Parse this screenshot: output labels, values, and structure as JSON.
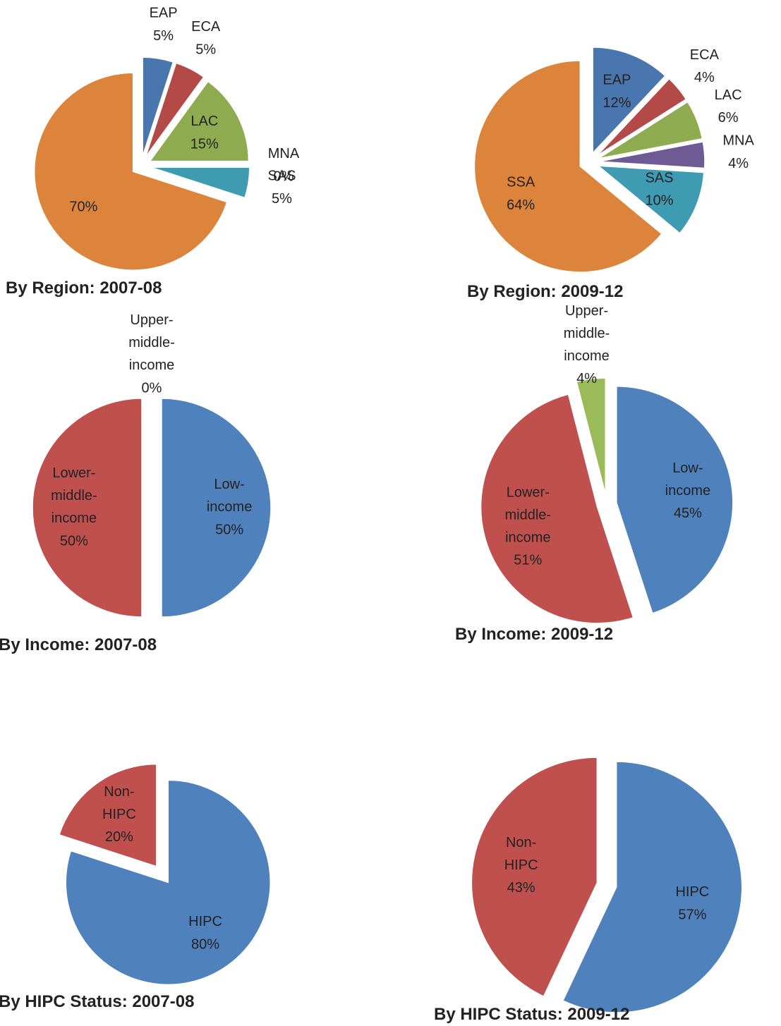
{
  "chart_data": [
    {
      "type": "pie",
      "title": "By Region: 2007-08",
      "categories": [
        "EAP",
        "ECA",
        "LAC",
        "MNA",
        "SAS",
        null
      ],
      "values": [
        5,
        5,
        15,
        0,
        5,
        70
      ],
      "value_labels": [
        "5%",
        "5%",
        "15%",
        "0%",
        "5%",
        "70%"
      ],
      "colors": [
        "#4a76b0",
        "#b44a48",
        "#8eac4f",
        "#6e5a95",
        "#3f9bb2",
        "#dc843c"
      ]
    },
    {
      "type": "pie",
      "title": "By Region: 2009-12",
      "categories": [
        "EAP",
        "ECA",
        "LAC",
        "MNA",
        "SAS",
        "SSA"
      ],
      "values": [
        12,
        4,
        6,
        4,
        10,
        64
      ],
      "value_labels": [
        "12%",
        "4%",
        "6%",
        "4%",
        "10%",
        "64%"
      ],
      "colors": [
        "#4a76b0",
        "#b44a48",
        "#8eac4f",
        "#6e5a95",
        "#3f9bb2",
        "#dc843c"
      ]
    },
    {
      "type": "pie",
      "title": "By Income: 2007-08",
      "categories": [
        "Low-income",
        "Lower-middle-income",
        "Upper-middle-income"
      ],
      "values": [
        50,
        50,
        0
      ],
      "value_labels": [
        "50%",
        "50%",
        "0%"
      ],
      "colors": [
        "#4f81bd",
        "#c0504d",
        "#9bbb59"
      ]
    },
    {
      "type": "pie",
      "title": "By Income: 2009-12",
      "categories": [
        "Low-income",
        "Lower-middle-income",
        "Upper-middle-income"
      ],
      "values": [
        45,
        51,
        4
      ],
      "value_labels": [
        "45%",
        "51%",
        "4%"
      ],
      "colors": [
        "#4f81bd",
        "#c0504d",
        "#9bbb59"
      ]
    },
    {
      "type": "pie",
      "title": "By HIPC Status: 2007-08",
      "categories": [
        "HIPC",
        "Non-HIPC"
      ],
      "values": [
        80,
        20
      ],
      "value_labels": [
        "80%",
        "20%"
      ],
      "colors": [
        "#4f81bd",
        "#c0504d"
      ]
    },
    {
      "type": "pie",
      "title": "By HIPC Status: 2009-12",
      "categories": [
        "HIPC",
        "Non-HIPC"
      ],
      "values": [
        57,
        43
      ],
      "value_labels": [
        "57%",
        "43%"
      ],
      "colors": [
        "#4f81bd",
        "#c0504d"
      ]
    }
  ]
}
